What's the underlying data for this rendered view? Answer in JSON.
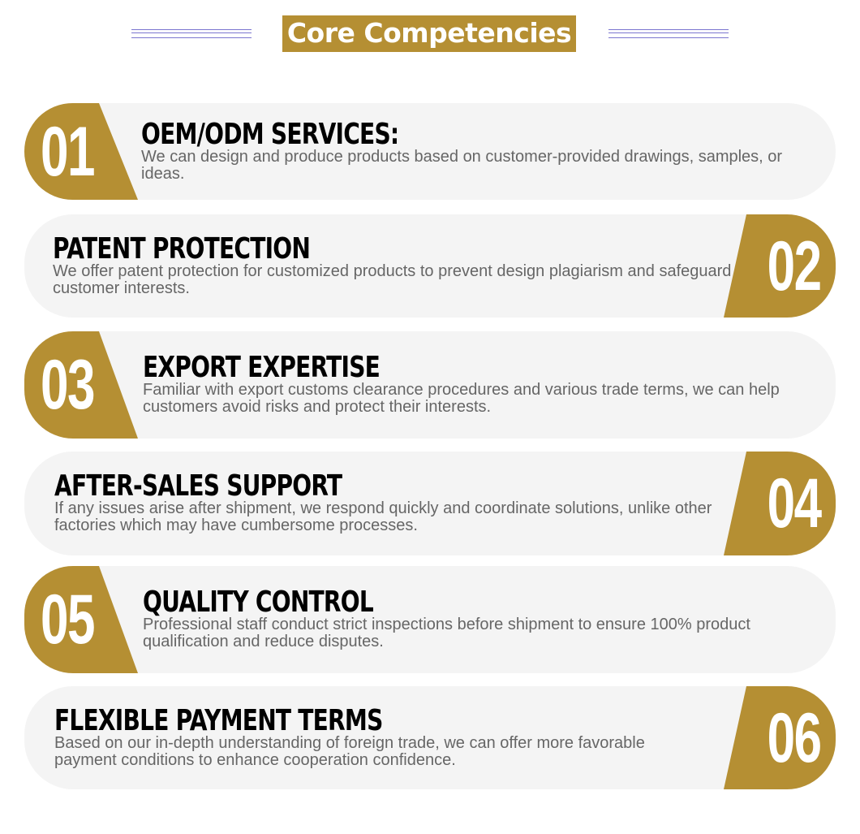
{
  "header": {
    "title": "Core Competencies"
  },
  "brand_color": "#b58f33",
  "items": [
    {
      "number": "01",
      "title": "OEM/ODM SERVICES:",
      "description": "We can design and produce products based on customer-provided drawings, samples, or ideas."
    },
    {
      "number": "02",
      "title": "PATENT PROTECTION",
      "description": "We offer patent protection for customized products to prevent design plagiarism and safeguard customer interests."
    },
    {
      "number": "03",
      "title": "EXPORT EXPERTISE",
      "description": "Familiar with export customs clearance procedures and various trade terms, we can help customers avoid risks and protect their interests."
    },
    {
      "number": "04",
      "title": "AFTER-SALES SUPPORT",
      "description": "If any issues arise after shipment, we respond quickly and coordinate solutions, unlike other factories which may have cumbersome processes."
    },
    {
      "number": "05",
      "title": "QUALITY CONTROL",
      "description": "Professional staff conduct strict inspections before shipment to ensure 100% product qualification and reduce disputes."
    },
    {
      "number": "06",
      "title": "FLEXIBLE PAYMENT TERMS",
      "description": "Based on our in-depth understanding of foreign trade, we can offer more favorable payment conditions to enhance cooperation confidence."
    }
  ]
}
